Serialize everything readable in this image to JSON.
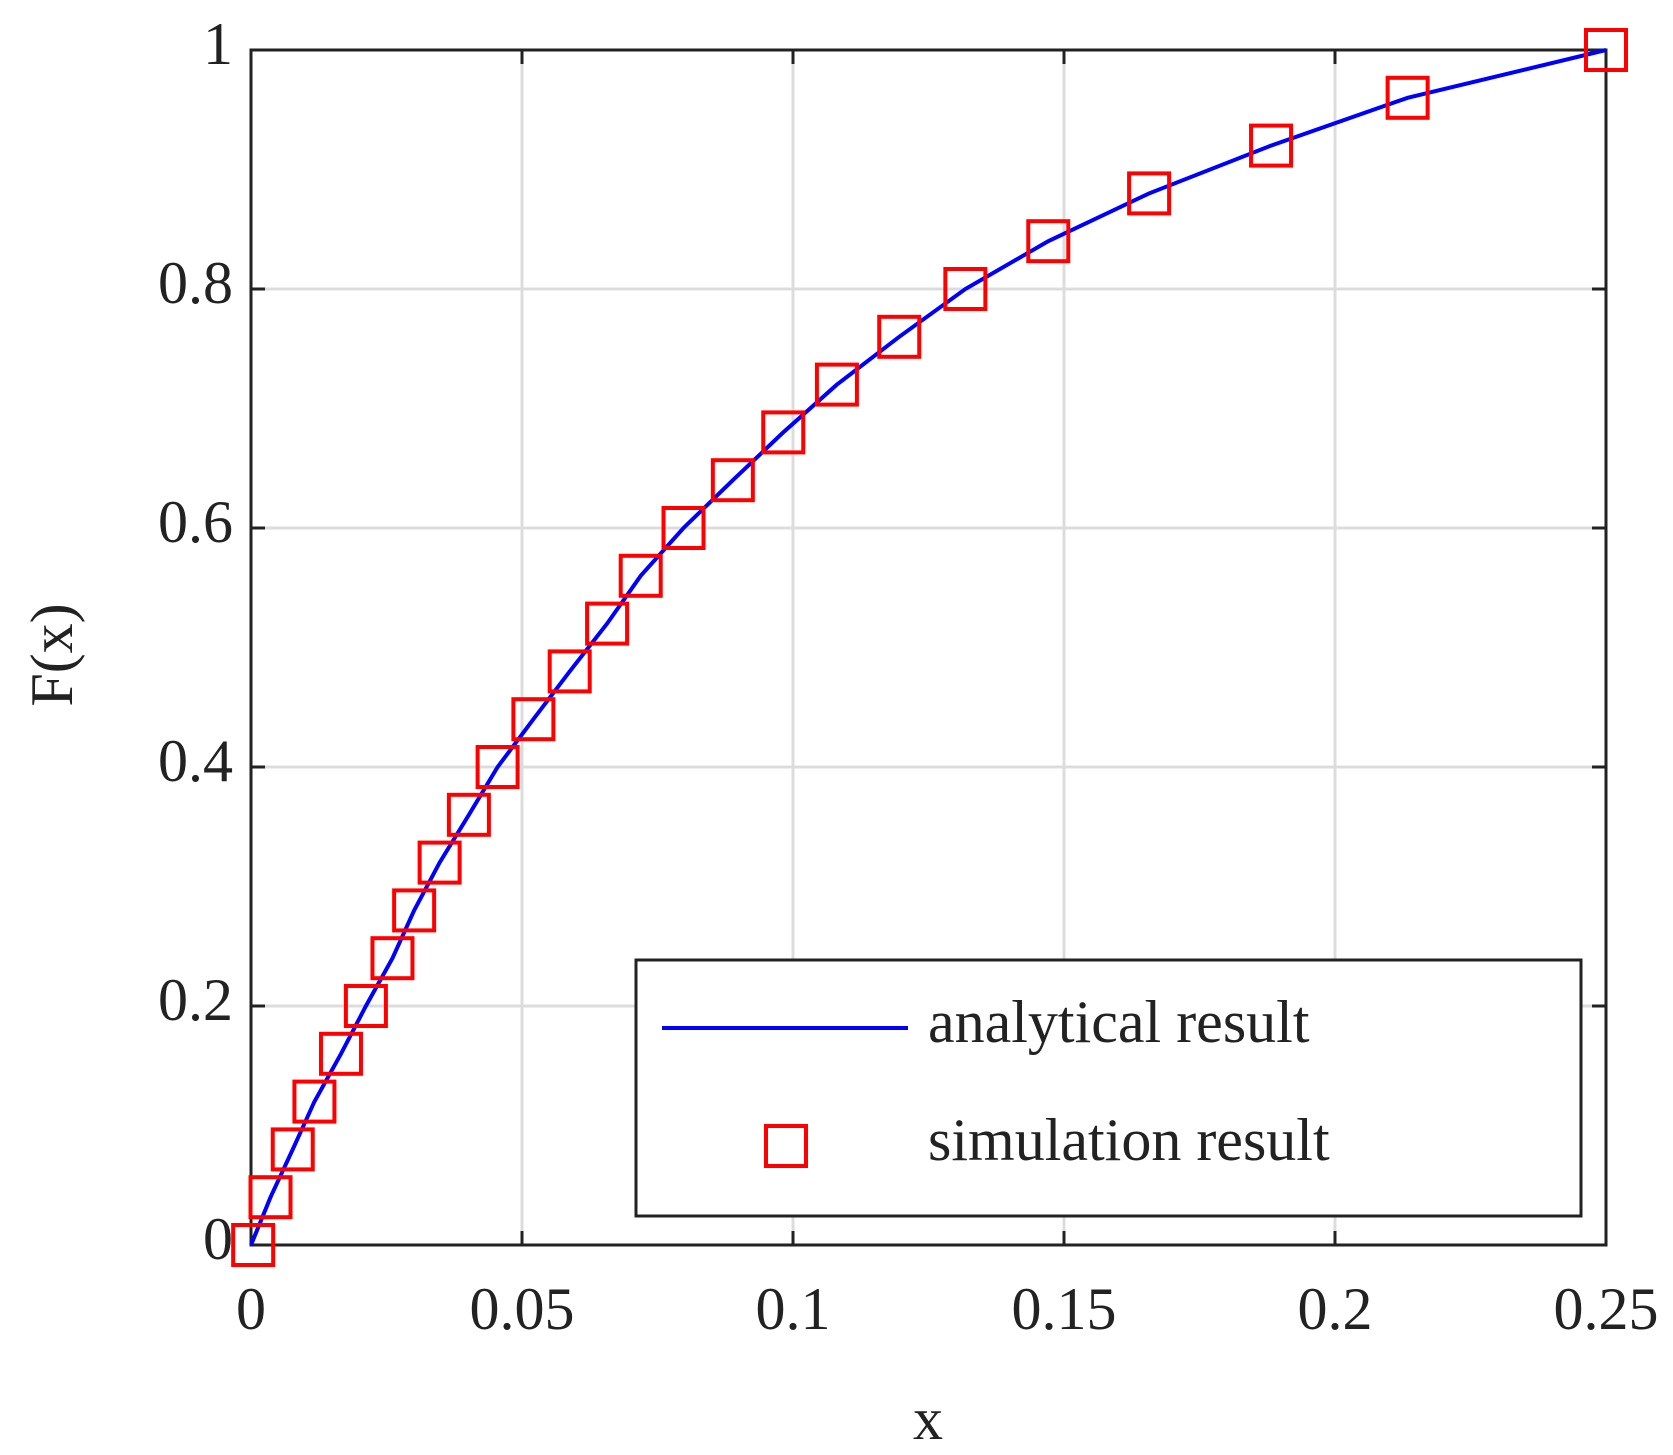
{
  "chart_data": {
    "type": "line",
    "xlabel": "x",
    "ylabel": "F(x)",
    "xlim": [
      0,
      0.25
    ],
    "ylim": [
      0,
      1
    ],
    "xticks": [
      0,
      0.05,
      0.1,
      0.15,
      0.2,
      0.25
    ],
    "yticks": [
      0,
      0.2,
      0.4,
      0.6,
      0.8,
      1
    ],
    "grid": true,
    "legend": "lower right",
    "series": [
      {
        "name": "analytical result",
        "type": "line",
        "color": "#0000ff",
        "x": [
          0,
          0.0036,
          0.0077,
          0.0117,
          0.0166,
          0.0212,
          0.0261,
          0.0301,
          0.0348,
          0.0402,
          0.0455,
          0.0521,
          0.0588,
          0.0657,
          0.0719,
          0.0798,
          0.0889,
          0.0982,
          0.1081,
          0.1196,
          0.1318,
          0.1471,
          0.1657,
          0.1882,
          0.2134,
          0.25
        ],
        "values": [
          0,
          0.04,
          0.08,
          0.12,
          0.16,
          0.2,
          0.24,
          0.28,
          0.32,
          0.36,
          0.4,
          0.44,
          0.48,
          0.52,
          0.56,
          0.6,
          0.64,
          0.68,
          0.72,
          0.76,
          0.8,
          0.84,
          0.88,
          0.92,
          0.96,
          1
        ]
      },
      {
        "name": "simulation result",
        "type": "scatter",
        "color": "#ff0000",
        "x": [
          0.0004,
          0.0036,
          0.0077,
          0.0117,
          0.0166,
          0.0212,
          0.0261,
          0.0301,
          0.0348,
          0.0402,
          0.0455,
          0.0521,
          0.0588,
          0.0657,
          0.0719,
          0.0798,
          0.0889,
          0.0982,
          0.1081,
          0.1196,
          0.1318,
          0.1471,
          0.1657,
          0.1882,
          0.2134,
          0.25
        ],
        "values": [
          0,
          0.04,
          0.08,
          0.12,
          0.16,
          0.2,
          0.24,
          0.28,
          0.32,
          0.36,
          0.4,
          0.44,
          0.48,
          0.52,
          0.56,
          0.6,
          0.64,
          0.68,
          0.72,
          0.76,
          0.8,
          0.84,
          0.88,
          0.92,
          0.96,
          1
        ]
      }
    ]
  }
}
